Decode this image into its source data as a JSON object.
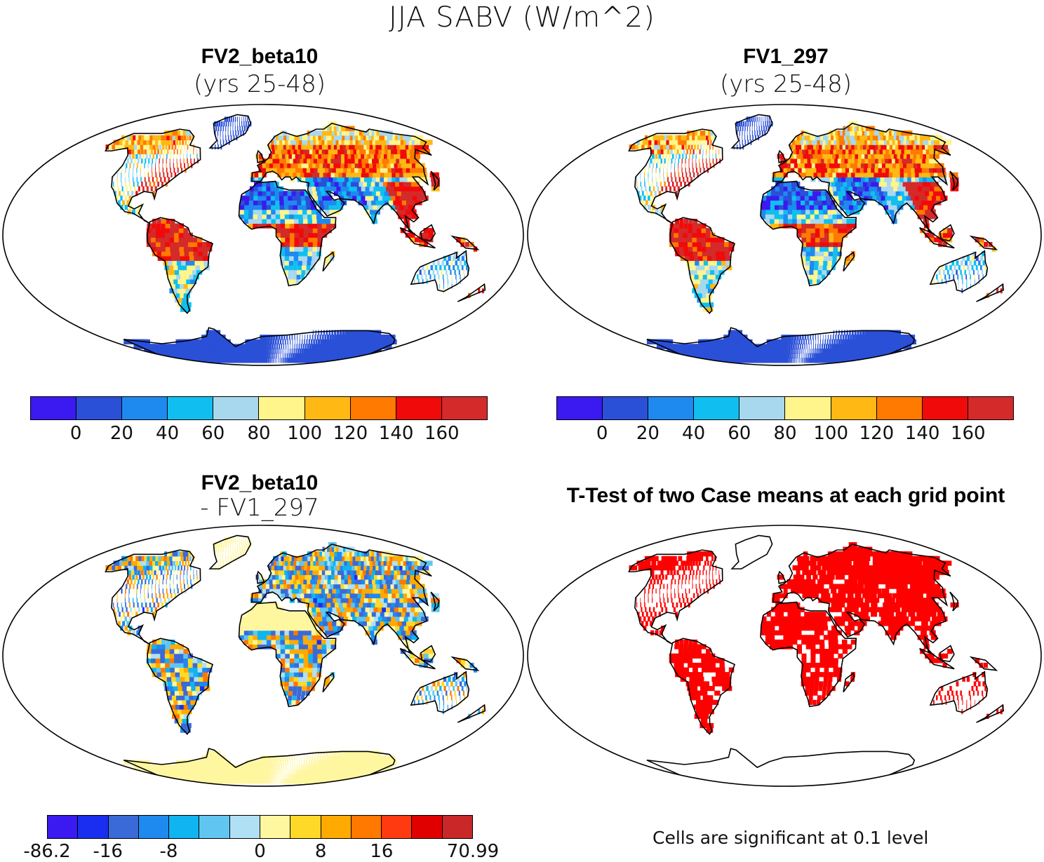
{
  "title": "JJA SABV (W/m^2)",
  "panels": [
    {
      "title": "FV2_beta10",
      "subtitle": "(yrs 25-48)",
      "type": "field"
    },
    {
      "title": "FV1_297",
      "subtitle": "(yrs 25-48)",
      "type": "field"
    },
    {
      "title": "FV2_beta10",
      "subtitle": "- FV1_297",
      "type": "difference"
    },
    {
      "title": "T-Test of two Case means at each grid point",
      "subtitle": "",
      "type": "ttest"
    }
  ],
  "colorbar_top": {
    "colors": [
      "#3a1af0",
      "#2a50d8",
      "#1e8af0",
      "#10bff0",
      "#a8d8ee",
      "#fff58a",
      "#ffb814",
      "#ff7a00",
      "#f00a0a",
      "#d42a2a"
    ],
    "labels": [
      "0",
      "20",
      "40",
      "60",
      "80",
      "100",
      "120",
      "140",
      "160"
    ]
  },
  "colorbar_diff": {
    "colors": [
      "#3a1af0",
      "#1a2ef0",
      "#3a6ad8",
      "#1e8af0",
      "#10b4f0",
      "#60c6f0",
      "#b0e0f4",
      "#fff6a0",
      "#ffd828",
      "#ffaa00",
      "#ff7800",
      "#ff3a10",
      "#e00000",
      "#c82828"
    ],
    "labels": [
      "-86.2",
      "-16",
      "-8",
      "0",
      "8",
      "16",
      "70.99"
    ]
  },
  "ttest": {
    "color": "#ff0000",
    "note": "Cells are significant at 0.1 level"
  }
}
